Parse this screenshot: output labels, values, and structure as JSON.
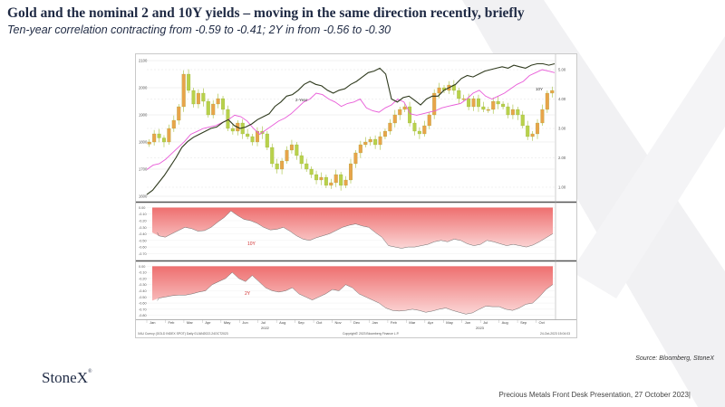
{
  "slide": {
    "title": "Gold and the nominal 2 and 10Y yields – moving in the same direction recently, briefly",
    "subtitle": "Ten-year correlation contracting from -0.59 to -0.41; 2Y in from -0.56 to -0.30",
    "source": "Source: Bloomberg, StoneX",
    "logo": "StoneX",
    "footer": "Precious Metals Front Desk Presentation, 27 October 2023|"
  },
  "chart_data": {
    "type": "line",
    "panels": [
      {
        "id": "gold-yields",
        "left_ticks": [
          1600,
          1700,
          1800,
          1900,
          2000,
          2100
        ],
        "right_ticks": [
          "1.00",
          "2.00",
          "3.00",
          "4.00",
          "5.00"
        ],
        "left_ylim": [
          1590,
          2110
        ],
        "right_ylim": [
          0.6,
          5.4
        ],
        "annotations": [
          "2-Year",
          "10Y"
        ],
        "series": [
          {
            "type": "candlestick",
            "color": "#d98a1f",
            "values": [
              1800,
              1830,
              1815,
              1800,
              1850,
              1880,
              1930,
              2050,
              1990,
              1940,
              1980,
              1950,
              1900,
              1940,
              1960,
              1920,
              1850,
              1840,
              1870,
              1830,
              1820,
              1800,
              1840,
              1830,
              1780,
              1720,
              1700,
              1730,
              1770,
              1790,
              1750,
              1720,
              1700,
              1680,
              1660,
              1670,
              1640,
              1650,
              1680,
              1640,
              1660,
              1720,
              1760,
              1790,
              1800,
              1810,
              1790,
              1820,
              1840,
              1870,
              1900,
              1920,
              1930,
              1870,
              1840,
              1830,
              1860,
              1900,
              1980,
              2000,
              1990,
              2010,
              1990,
              1960,
              1960,
              1930,
              1960,
              1930,
              1920,
              1920,
              1950,
              1940,
              1930,
              1900,
              1920,
              1900,
              1860,
              1820,
              1830,
              1870,
              1920,
              1980,
              1990
            ]
          },
          {
            "name": "2-Year",
            "color": "#2f3a1e",
            "axis": "right",
            "values": [
              0.75,
              0.9,
              1.15,
              1.4,
              1.7,
              2.0,
              2.35,
              2.55,
              2.7,
              2.8,
              2.9,
              3.0,
              3.05,
              3.2,
              3.3,
              3.1,
              3.0,
              3.05,
              3.15,
              3.3,
              3.4,
              3.5,
              3.75,
              3.9,
              4.1,
              4.15,
              4.3,
              4.5,
              4.6,
              4.5,
              4.45,
              4.3,
              4.2,
              4.3,
              4.35,
              4.5,
              4.6,
              4.75,
              4.9,
              4.95,
              5.05,
              4.85,
              4.0,
              3.9,
              4.05,
              4.1,
              3.95,
              3.8,
              4.0,
              4.1,
              4.1,
              4.3,
              4.4,
              4.5,
              4.7,
              4.8,
              4.75,
              4.85,
              4.95,
              5.0,
              5.05,
              5.1,
              5.05,
              5.15,
              5.1,
              5.05,
              5.15,
              5.2,
              5.2,
              5.15,
              5.2
            ]
          },
          {
            "name": "10Y",
            "color": "#e85bd8",
            "axis": "right",
            "values": [
              1.6,
              1.75,
              1.8,
              1.95,
              2.15,
              2.35,
              2.55,
              2.8,
              2.9,
              3.0,
              3.05,
              3.1,
              3.2,
              3.3,
              3.45,
              3.4,
              3.25,
              3.0,
              2.8,
              2.95,
              3.1,
              3.25,
              3.35,
              3.5,
              3.7,
              3.9,
              4.0,
              4.2,
              4.15,
              4.0,
              3.9,
              3.75,
              3.85,
              3.9,
              4.0,
              3.7,
              3.6,
              3.55,
              3.7,
              3.8,
              4.0,
              3.9,
              3.5,
              3.45,
              3.5,
              3.55,
              3.6,
              3.7,
              3.75,
              3.8,
              3.85,
              4.0,
              4.2,
              4.3,
              4.1,
              4.0,
              4.1,
              4.2,
              4.35,
              4.5,
              4.6,
              4.8,
              4.9,
              5.0,
              4.95,
              4.9
            ]
          }
        ]
      },
      {
        "id": "corr-10y",
        "label": "10Y",
        "ticks": [
          "0.00",
          "-0.10",
          "-0.20",
          "-0.30",
          "-0.40",
          "-0.50",
          "-0.60",
          "-0.70"
        ],
        "ylim": [
          -0.75,
          0.02
        ],
        "values": [
          -0.38,
          -0.43,
          -0.45,
          -0.4,
          -0.35,
          -0.3,
          -0.32,
          -0.36,
          -0.35,
          -0.3,
          -0.22,
          -0.15,
          -0.05,
          -0.12,
          -0.18,
          -0.2,
          -0.24,
          -0.3,
          -0.34,
          -0.33,
          -0.3,
          -0.36,
          -0.43,
          -0.48,
          -0.5,
          -0.46,
          -0.43,
          -0.4,
          -0.35,
          -0.3,
          -0.27,
          -0.25,
          -0.28,
          -0.3,
          -0.38,
          -0.45,
          -0.58,
          -0.6,
          -0.62,
          -0.6,
          -0.6,
          -0.58,
          -0.56,
          -0.52,
          -0.5,
          -0.52,
          -0.48,
          -0.5,
          -0.55,
          -0.58,
          -0.56,
          -0.5,
          -0.52,
          -0.55,
          -0.58,
          -0.56,
          -0.58,
          -0.6,
          -0.57,
          -0.52,
          -0.46,
          -0.4
        ]
      },
      {
        "id": "corr-2y",
        "label": "2Y",
        "ticks": [
          "0.00",
          "-0.10",
          "-0.20",
          "-0.30",
          "-0.40",
          "-0.50",
          "-0.60",
          "-0.70",
          "-0.80"
        ],
        "ylim": [
          -0.82,
          0.02
        ],
        "values": [
          -0.56,
          -0.52,
          -0.5,
          -0.48,
          -0.47,
          -0.47,
          -0.45,
          -0.42,
          -0.4,
          -0.3,
          -0.25,
          -0.2,
          -0.1,
          -0.2,
          -0.25,
          -0.15,
          -0.25,
          -0.35,
          -0.4,
          -0.42,
          -0.4,
          -0.35,
          -0.45,
          -0.5,
          -0.55,
          -0.5,
          -0.45,
          -0.38,
          -0.4,
          -0.3,
          -0.35,
          -0.45,
          -0.5,
          -0.55,
          -0.6,
          -0.68,
          -0.72,
          -0.73,
          -0.72,
          -0.7,
          -0.72,
          -0.75,
          -0.73,
          -0.7,
          -0.68,
          -0.72,
          -0.75,
          -0.78,
          -0.76,
          -0.7,
          -0.65,
          -0.66,
          -0.66,
          -0.7,
          -0.72,
          -0.68,
          -0.62,
          -0.6,
          -0.5,
          -0.38,
          -0.3
        ]
      }
    ],
    "x_ticks": [
      "Jan",
      "Feb",
      "Mar",
      "Apr",
      "May",
      "Jun",
      "Jul",
      "Aug",
      "Sep",
      "Oct",
      "Nov",
      "Dec",
      "Jan",
      "Feb",
      "Mar",
      "Apr",
      "May",
      "Jun",
      "Jul",
      "Aug",
      "Sep",
      "Oct"
    ],
    "year_labels": [
      "2022",
      "2023"
    ],
    "footer_left": "XAU Curncy (GOLD INDEX SPOT) Daily 01JAN2022-24OCT2023",
    "footer_mid": "Copyright© 2023 Bloomberg Finance L.P.",
    "footer_right": "24-Oct-2023 15:04:03"
  },
  "colors": {
    "accent": "#1f2a44",
    "gold": "#d98a1f",
    "two_year": "#2f3a1e",
    "ten_year": "#e85bd8",
    "fill": "#f08a8a"
  },
  "icons": {
    "bg": "x-watermark-icon"
  }
}
